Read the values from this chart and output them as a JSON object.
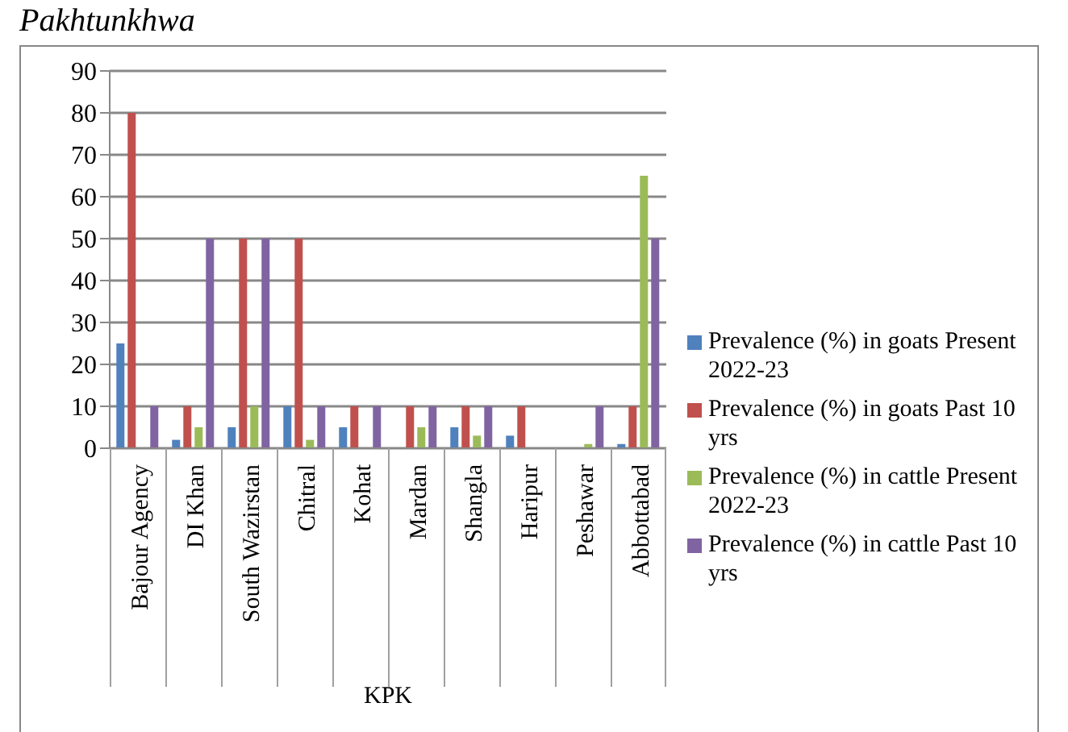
{
  "chart_data": {
    "type": "bar",
    "title": "Pakhtunkhwa",
    "xlabel": "KPK",
    "categories": [
      "Bajour Agency",
      "DI Khan",
      "South Wazirstan",
      "Chitral",
      "Kohat",
      "Mardan",
      "Shangla",
      "Haripur",
      "Peshawar",
      "Abbottabad"
    ],
    "series": [
      {
        "name": "Prevalence (%) in goats Present 2022-23",
        "color": "#4f81bd",
        "values": [
          25,
          2,
          5,
          10,
          5,
          0,
          5,
          3,
          0,
          1
        ]
      },
      {
        "name": "Prevalence (%) in goats Past 10 yrs",
        "color": "#c0504d",
        "values": [
          80,
          10,
          50,
          50,
          10,
          10,
          10,
          10,
          0,
          10
        ]
      },
      {
        "name": "Prevalence (%) in cattle Present 2022-23",
        "color": "#9bbb59",
        "values": [
          0,
          5,
          10,
          2,
          0,
          5,
          3,
          0,
          1,
          65
        ]
      },
      {
        "name": "Prevalence (%) in cattle Past 10 yrs",
        "color": "#8064a2",
        "values": [
          10,
          50,
          50,
          10,
          10,
          10,
          10,
          0,
          10,
          50
        ]
      }
    ],
    "ylim": [
      0,
      90
    ],
    "yticks": [
      0,
      10,
      20,
      30,
      40,
      50,
      60,
      70,
      80,
      90
    ],
    "grid": "y",
    "legend": "right"
  }
}
